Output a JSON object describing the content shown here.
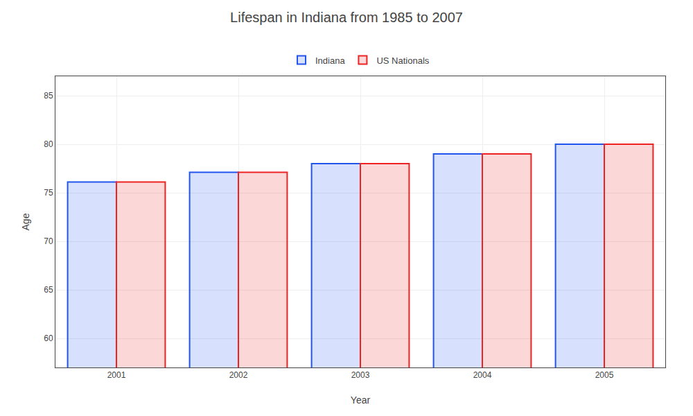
{
  "chart_data": {
    "type": "bar",
    "title": "Lifespan in Indiana from 1985 to 2007",
    "xlabel": "Year",
    "ylabel": "Age",
    "categories": [
      "2001",
      "2002",
      "2003",
      "2004",
      "2005"
    ],
    "series": [
      {
        "name": "Indiana",
        "color": "#2255ee",
        "values": [
          76.1,
          77.1,
          78.0,
          79.0,
          80.0
        ]
      },
      {
        "name": "US Nationals",
        "color": "#ee2222",
        "values": [
          76.1,
          77.1,
          78.0,
          79.0,
          80.0
        ]
      }
    ],
    "ylim": [
      57,
      87
    ],
    "yticks": [
      60,
      65,
      70,
      75,
      80,
      85
    ],
    "grid": true,
    "legend": "top"
  }
}
